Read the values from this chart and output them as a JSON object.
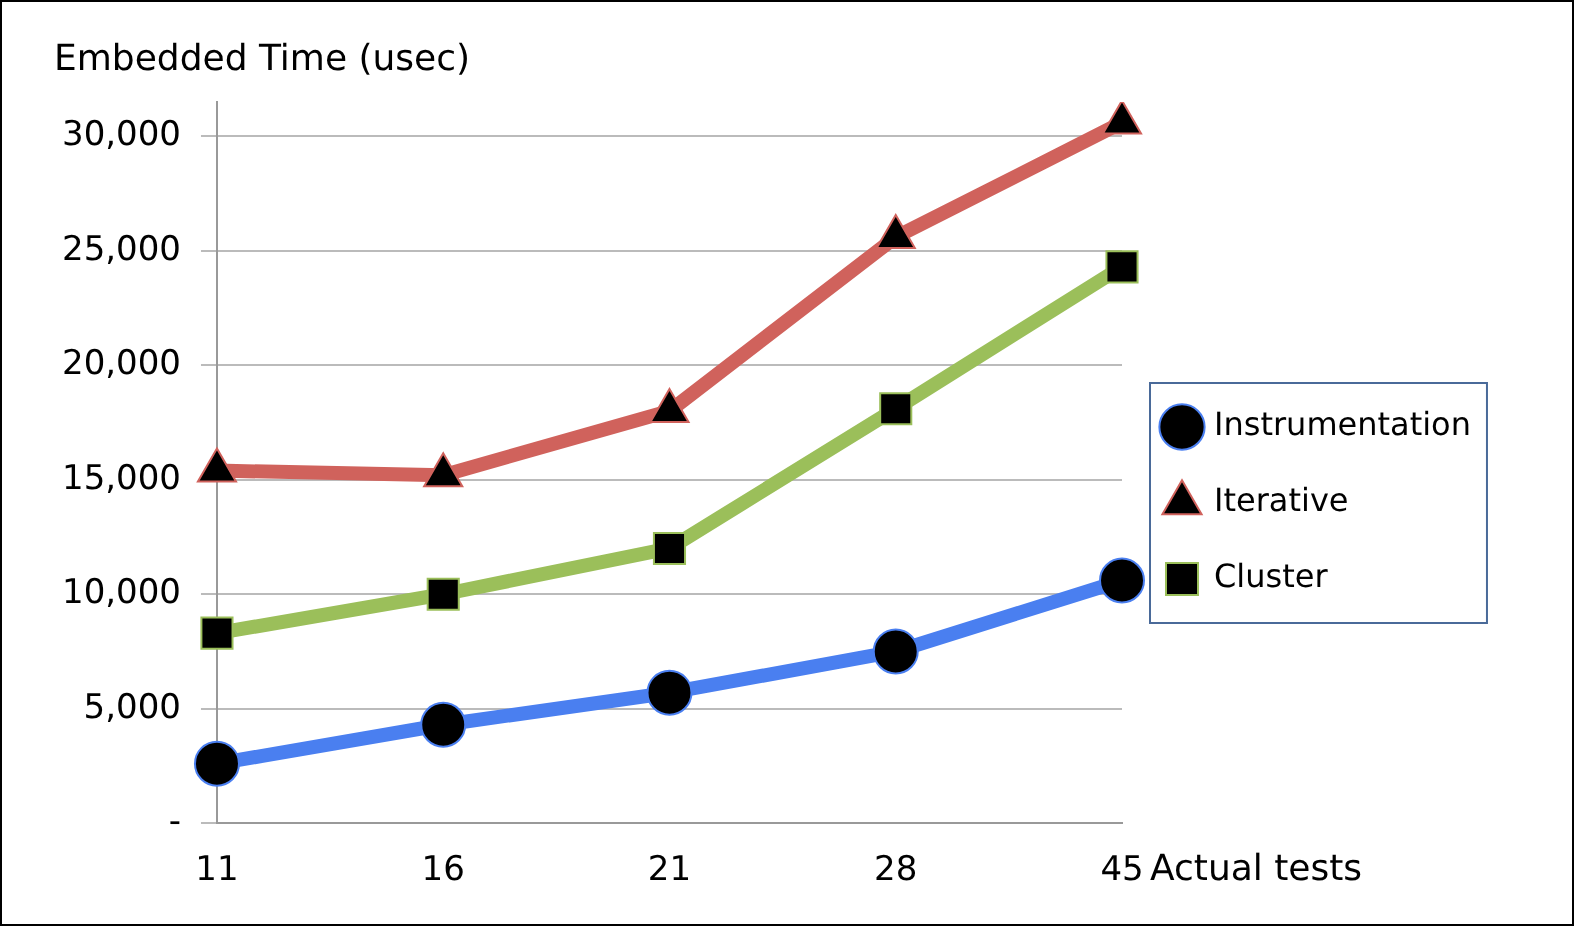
{
  "chart_data": {
    "type": "line",
    "ylabel": "Embedded Time (usec)",
    "xlabel": "Actual tests",
    "categories": [
      "11",
      "16",
      "21",
      "28",
      "45"
    ],
    "series": [
      {
        "name": "Instrumentation",
        "color": "#4a7ff0",
        "marker": "circle",
        "values": [
          2600,
          4300,
          5700,
          7500,
          10600
        ]
      },
      {
        "name": "Iterative",
        "color": "#d0625c",
        "marker": "triangle",
        "values": [
          15400,
          15200,
          18000,
          25600,
          30600
        ]
      },
      {
        "name": "Cluster",
        "color": "#9bbf5a",
        "marker": "square",
        "values": [
          8300,
          10000,
          12000,
          18100,
          24300
        ]
      }
    ],
    "ylim": [
      0,
      31500
    ],
    "yticks": [
      {
        "value": 0,
        "label": "-"
      },
      {
        "value": 5000,
        "label": "5,000"
      },
      {
        "value": 10000,
        "label": "10,000"
      },
      {
        "value": 15000,
        "label": "15,000"
      },
      {
        "value": 20000,
        "label": "20,000"
      },
      {
        "value": 25000,
        "label": "25,000"
      },
      {
        "value": 30000,
        "label": "30,000"
      }
    ],
    "grid": "y",
    "legend": "right",
    "line_style": "solid"
  }
}
